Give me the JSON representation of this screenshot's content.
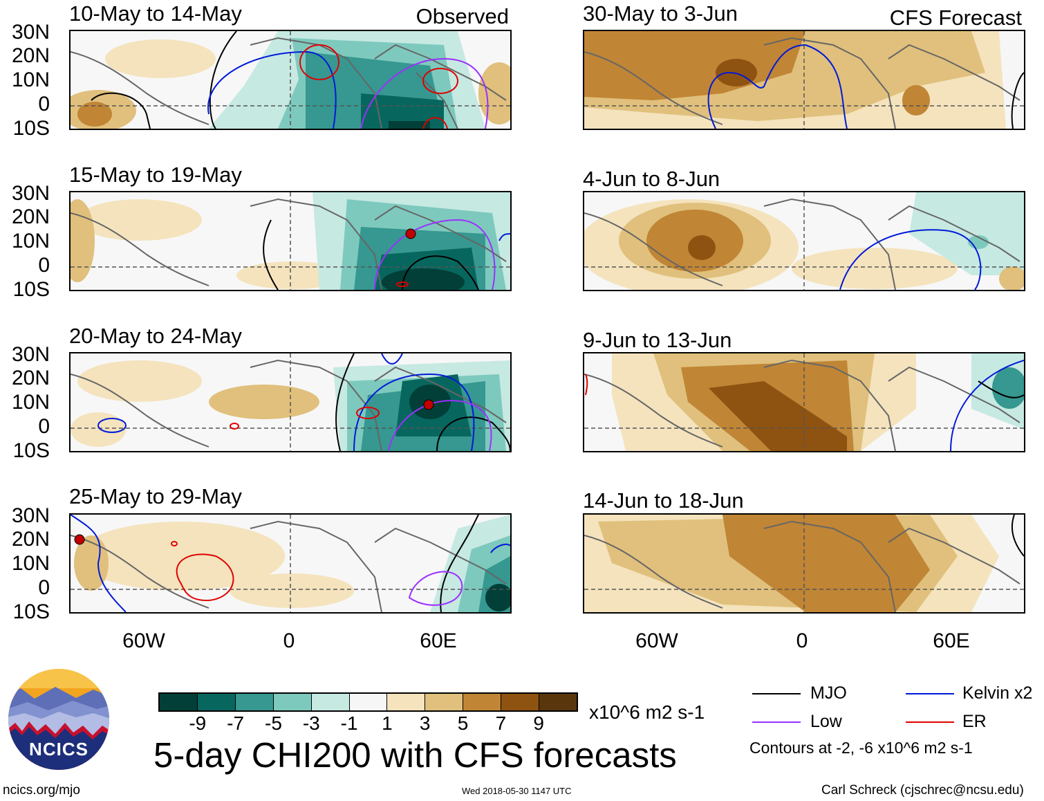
{
  "panels_left": {
    "tag": "Observed",
    "titles": [
      "10-May to 14-May",
      "15-May to 19-May",
      "20-May to 24-May",
      "25-May to 29-May"
    ]
  },
  "panels_right": {
    "tag": "CFS Forecast",
    "titles": [
      "30-May to 3-Jun",
      "4-Jun to 8-Jun",
      "9-Jun to 13-Jun",
      "14-Jun to 18-Jun"
    ]
  },
  "lat_labels": [
    "30N",
    "20N",
    "10N",
    "0",
    "10S"
  ],
  "lon_labels": [
    "60W",
    "0",
    "60E"
  ],
  "colorbar": {
    "colors": [
      "#013f38",
      "#07675e",
      "#369890",
      "#7ec9bd",
      "#c6e9e2",
      "#f6f6f6",
      "#f4e3bd",
      "#e0c07c",
      "#c08535",
      "#8e5310",
      "#5a360d"
    ],
    "tick_labels": [
      "-9",
      "-7",
      "-5",
      "-3",
      "-1",
      "1",
      "3",
      "5",
      "7",
      "9"
    ],
    "units": "x10^6 m2 s-1"
  },
  "main_title": "5-day CHI200 with CFS forecasts",
  "legend": {
    "items": [
      {
        "label": "MJO",
        "color": "#000000"
      },
      {
        "label": "Kelvin x2",
        "color": "#0019d9"
      },
      {
        "label": "Low",
        "color": "#9b30ff"
      },
      {
        "label": "ER",
        "color": "#e00000"
      }
    ],
    "note": "Contours at -2, -6 x10^6 m2 s-1"
  },
  "logo": {
    "text": "NCICS"
  },
  "footer": {
    "left": "ncics.org/mjo",
    "center": "Wed 2018-05-30 1147 UTC",
    "right": "Carl Schreck (cjschrec@ncsu.edu)"
  }
}
